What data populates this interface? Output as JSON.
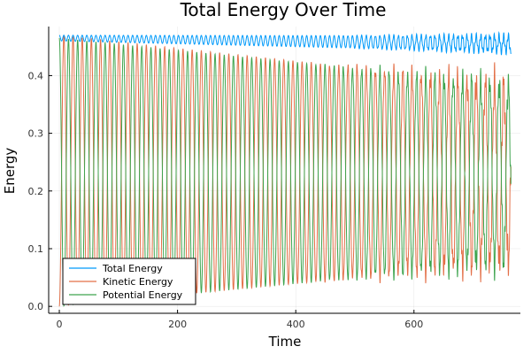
{
  "chart_data": {
    "type": "line",
    "title": "Total Energy Over Time",
    "xlabel": "Time",
    "ylabel": "Energy",
    "xlim": [
      -18,
      780
    ],
    "ylim": [
      -0.012,
      0.485
    ],
    "xticks": [
      0,
      200,
      400,
      600
    ],
    "yticks": [
      0.0,
      0.1,
      0.2,
      0.3,
      0.4
    ],
    "ytick_labels": [
      "0.0",
      "0.1",
      "0.2",
      "0.3",
      "0.4"
    ],
    "grid": true,
    "legend_position": "bottom-left",
    "series_summary": {
      "x_start": 0,
      "x_end": 764,
      "oscillation_period": 15.5,
      "total_start": 0.465,
      "total_end": 0.455,
      "total_ripple_start": 0.01,
      "total_ripple_end": 0.028,
      "kinetic_max_start": 0.47,
      "kinetic_max_end": 0.385,
      "kinetic_min_start": 0.0,
      "kinetic_min_end": 0.075,
      "potential_max_start": 0.465,
      "potential_max_end": 0.385,
      "potential_min_start": 0.0,
      "potential_min_end": 0.075
    },
    "series": [
      {
        "name": "Total Energy",
        "color": "#009AFA"
      },
      {
        "name": "Kinetic Energy",
        "color": "#E36F47"
      },
      {
        "name": "Potential Energy",
        "color": "#3EA44E"
      }
    ]
  }
}
